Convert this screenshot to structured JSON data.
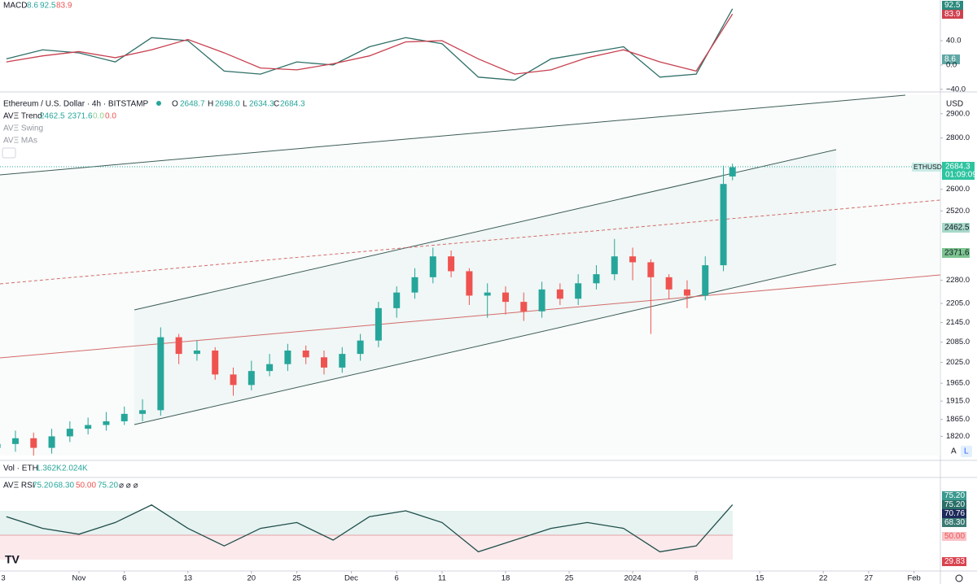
{
  "ui": {
    "macd_header": {
      "name": "MACD",
      "values": [
        "8.6",
        "92.5",
        "83.9"
      ]
    },
    "macd_badges": [
      "92.5",
      "83.9",
      "8.6"
    ],
    "price_header": {
      "symbol": "Ethereum / U.S. Dollar · 4h · BITSTAMP",
      "ohlc": [
        {
          "key": "O",
          "value": "2648.7"
        },
        {
          "key": "H",
          "value": "2698.0"
        },
        {
          "key": "L",
          "value": "2634.3"
        },
        {
          "key": "C",
          "value": "2684.3"
        }
      ]
    },
    "indicators": [
      {
        "name": "AVΞ Trend",
        "values": [
          "2462.5",
          "2371.6",
          "0.0",
          "0.0"
        ]
      },
      {
        "name": "AVΞ Swing"
      },
      {
        "name": "AVΞ MAs"
      }
    ],
    "currency": "USD",
    "price_badges": {
      "symbol": "ETHUSD",
      "price": "2684.3",
      "countdown": "01:09:09",
      "trend_upper": "2462.5",
      "trend_lower": "2371.6"
    },
    "scale_buttons": [
      "A",
      "L"
    ],
    "volume": {
      "name": "Vol · ETH",
      "values": [
        "1.362K",
        "2.024K"
      ]
    },
    "rsi_header": {
      "name": "AVΞ RSI",
      "values": [
        "75.20",
        "68.30",
        "50.00",
        "75.20",
        "⌀ ⌀ ⌀"
      ]
    },
    "rsi_badges": [
      "75.20",
      "75.20",
      "70.76",
      "68.30",
      "50.00",
      "29.83"
    ]
  },
  "chart_data": [
    {
      "type": "candlestick",
      "up_color": "#26a69a",
      "down_color": "#ef5350",
      "log_scale": true,
      "grid": false,
      "x": [
        -9,
        -7,
        -5,
        -3,
        -1,
        1,
        3,
        5,
        7,
        9,
        11,
        13,
        15,
        17,
        19,
        21,
        23,
        25,
        27,
        29,
        31,
        33,
        35,
        37,
        39,
        41,
        43,
        45,
        47,
        49,
        51,
        53,
        55,
        57,
        59,
        61,
        63,
        65,
        67,
        69,
        71,
        72
      ],
      "open": [
        1790,
        1800,
        1815,
        1790,
        1820,
        1840,
        1850,
        1860,
        1880,
        1890,
        2100,
        2050,
        2060,
        1990,
        1960,
        2000,
        2020,
        2060,
        2040,
        2010,
        2050,
        2090,
        2190,
        2240,
        2290,
        2360,
        2310,
        2230,
        2240,
        2210,
        2180,
        2250,
        2220,
        2270,
        2300,
        2360,
        2340,
        2290,
        2250,
        2230,
        2330,
        2648.7
      ],
      "high": [
        1825,
        1835,
        1830,
        1840,
        1860,
        1870,
        1885,
        1900,
        1920,
        2130,
        2110,
        2090,
        2070,
        2010,
        2030,
        2050,
        2080,
        2075,
        2060,
        2070,
        2110,
        2210,
        2260,
        2320,
        2390,
        2380,
        2320,
        2270,
        2260,
        2240,
        2275,
        2270,
        2300,
        2330,
        2420,
        2390,
        2350,
        2300,
        2280,
        2360,
        2690,
        2698.0
      ],
      "low": [
        1770,
        1780,
        1770,
        1775,
        1805,
        1825,
        1835,
        1850,
        1860,
        1875,
        2020,
        2030,
        1975,
        1930,
        1945,
        1985,
        2000,
        2020,
        1990,
        1995,
        2030,
        2070,
        2160,
        2220,
        2270,
        2290,
        2200,
        2160,
        2170,
        2150,
        2160,
        2200,
        2200,
        2250,
        2280,
        2280,
        2110,
        2220,
        2190,
        2215,
        2310,
        2634.3
      ],
      "close": [
        1800,
        1815,
        1790,
        1820,
        1840,
        1850,
        1860,
        1880,
        1890,
        2100,
        2050,
        2060,
        1990,
        1960,
        2000,
        2020,
        2060,
        2040,
        2010,
        2050,
        2090,
        2190,
        2240,
        2290,
        2360,
        2310,
        2230,
        2240,
        2210,
        2180,
        2250,
        2220,
        2270,
        2300,
        2360,
        2340,
        2290,
        2250,
        2230,
        2330,
        2620,
        2684.3
      ],
      "xlim": [
        -8.7,
        94.9
      ],
      "xticks": [
        {
          "value": -9,
          "label": "3"
        },
        {
          "value": 0,
          "label": "Nov"
        },
        {
          "value": 5,
          "label": "6"
        },
        {
          "value": 12,
          "label": "13"
        },
        {
          "value": 19,
          "label": "20"
        },
        {
          "value": 24,
          "label": "25"
        },
        {
          "value": 30,
          "label": "Dec"
        },
        {
          "value": 35,
          "label": "6"
        },
        {
          "value": 40,
          "label": "11"
        },
        {
          "value": 47,
          "label": "18"
        },
        {
          "value": 54,
          "label": "25"
        },
        {
          "value": 61,
          "label": "2024"
        },
        {
          "value": 68,
          "label": "8"
        },
        {
          "value": 75,
          "label": "15"
        },
        {
          "value": 82,
          "label": "22"
        },
        {
          "value": 87,
          "label": "27"
        },
        {
          "value": 92,
          "label": "Feb"
        }
      ],
      "ylim": [
        1760,
        2975
      ],
      "yticks": [
        {
          "value": 2900,
          "label": "2900.0"
        },
        {
          "value": 2800,
          "label": "2800.0"
        },
        {
          "value": 2600,
          "label": "2600.0"
        },
        {
          "value": 2520,
          "label": "2520.0"
        },
        {
          "value": 2280,
          "label": "2280.0"
        },
        {
          "value": 2205,
          "label": "2205.0"
        },
        {
          "value": 2145,
          "label": "2145.0"
        },
        {
          "value": 2085,
          "label": "2085.0"
        },
        {
          "value": 2025,
          "label": "2025.0"
        },
        {
          "value": 1965,
          "label": "1965.0"
        },
        {
          "value": 1915,
          "label": "1915.0"
        },
        {
          "value": 1865,
          "label": "1865.0"
        },
        {
          "value": 1820,
          "label": "1820.0"
        }
      ]
    },
    {
      "type": "line",
      "x": [
        -8,
        -4,
        0,
        4,
        8,
        12,
        16,
        20,
        24,
        28,
        32,
        36,
        40,
        44,
        48,
        52,
        56,
        60,
        64,
        68,
        72
      ],
      "series": [
        {
          "color": "#2f6f68",
          "values": [
            10,
            25,
            20,
            5,
            45,
            40,
            -10,
            -15,
            5,
            0,
            30,
            45,
            35,
            -20,
            -25,
            10,
            20,
            30,
            -20,
            -15,
            92.5
          ]
        },
        {
          "color": "#c8404f",
          "values": [
            5,
            15,
            22,
            12,
            25,
            42,
            20,
            -5,
            -8,
            2,
            15,
            38,
            40,
            10,
            -15,
            -8,
            12,
            25,
            5,
            -10,
            83.9
          ]
        }
      ],
      "xlim": [
        -8.7,
        94.9
      ],
      "ylim": [
        -43,
        107
      ],
      "yticks": [
        {
          "value": 40,
          "label": "40.0"
        },
        {
          "value": 0,
          "label": "0.0"
        },
        {
          "value": -40,
          "label": "−40.0"
        }
      ]
    },
    {
      "type": "line",
      "x": [
        -8,
        -4,
        0,
        4,
        8,
        12,
        16,
        20,
        24,
        28,
        32,
        36,
        40,
        44,
        48,
        52,
        56,
        60,
        64,
        68,
        72
      ],
      "series": [
        {
          "color": "#1f4e4a",
          "values": [
            65,
            55,
            50,
            60,
            75,
            55,
            40,
            55,
            60,
            45,
            65,
            70,
            60,
            35,
            45,
            55,
            60,
            55,
            35,
            40,
            75.2
          ]
        }
      ],
      "xlim": [
        -8.7,
        94.9
      ],
      "ylim": [
        20,
        95
      ]
    }
  ]
}
